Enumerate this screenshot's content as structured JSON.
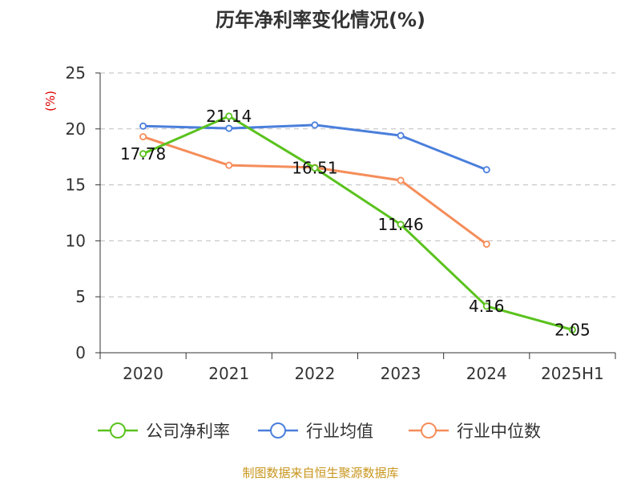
{
  "chart_data": {
    "type": "line",
    "title": "历年净利率变化情况(%)",
    "y_unit": "(%)",
    "categories": [
      "2020",
      "2021",
      "2022",
      "2023",
      "2024",
      "2025H1"
    ],
    "ylim": [
      0,
      25
    ],
    "yticks": [
      0,
      5,
      10,
      15,
      20,
      25
    ],
    "grid": true,
    "legend_position": "bottom",
    "series": [
      {
        "name": "公司净利率",
        "color": "#5ac21e",
        "values": [
          17.78,
          21.14,
          16.51,
          11.46,
          4.16,
          2.05
        ],
        "labels": [
          "17.78",
          "21.14",
          "16.51",
          "11.46",
          "4.16",
          "2.05"
        ]
      },
      {
        "name": "行业均值",
        "color": "#4a7fdc",
        "values": [
          20.25,
          20.05,
          20.35,
          19.4,
          16.35,
          null
        ]
      },
      {
        "name": "行业中位数",
        "color": "#f58d5a",
        "values": [
          19.3,
          16.75,
          16.55,
          15.4,
          9.7,
          null
        ]
      }
    ],
    "source": "制图数据来自恒生聚源数据库"
  }
}
